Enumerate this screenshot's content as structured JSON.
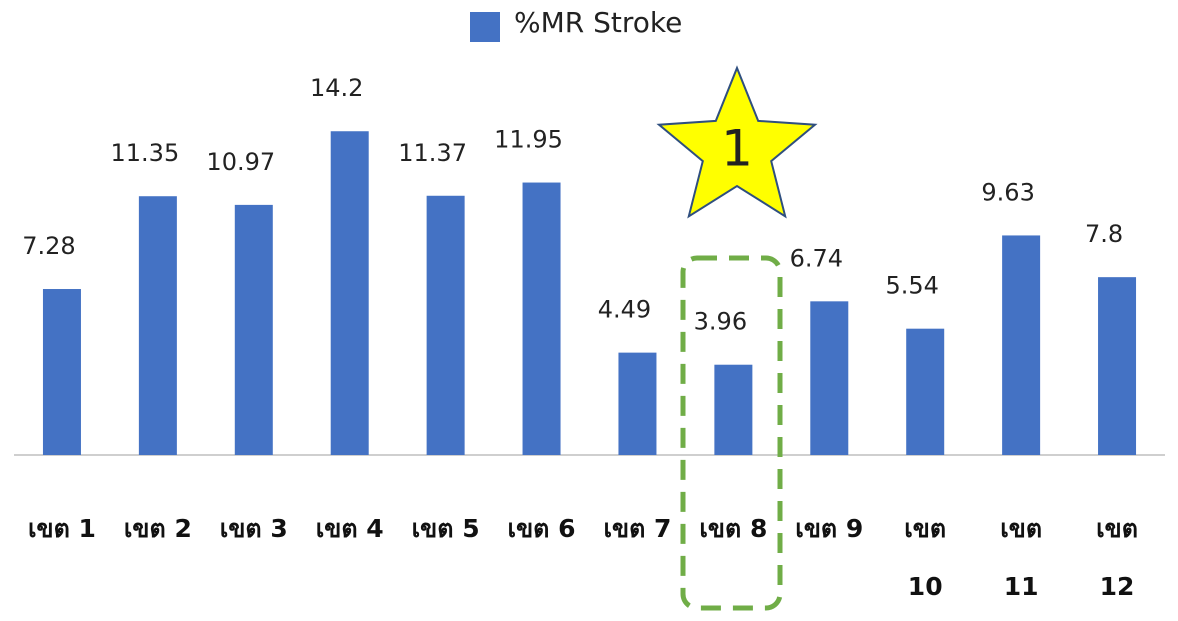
{
  "chart_data": {
    "type": "bar",
    "categories": [
      "เขต 1",
      "เขต 2",
      "เขต 3",
      "เขต 4",
      "เขต 5",
      "เขต 6",
      "เขต 7",
      "เขต 8",
      "เขต 9",
      "เขต 10",
      "เขต 11",
      "เขต 12"
    ],
    "series": [
      {
        "name": "%MR Stroke",
        "color": "#4472c4",
        "values": [
          7.28,
          11.35,
          10.97,
          14.2,
          11.37,
          11.95,
          4.49,
          3.96,
          6.74,
          5.54,
          9.63,
          7.8
        ]
      }
    ],
    "annotations": [
      {
        "text": "1"
      }
    ]
  }
}
